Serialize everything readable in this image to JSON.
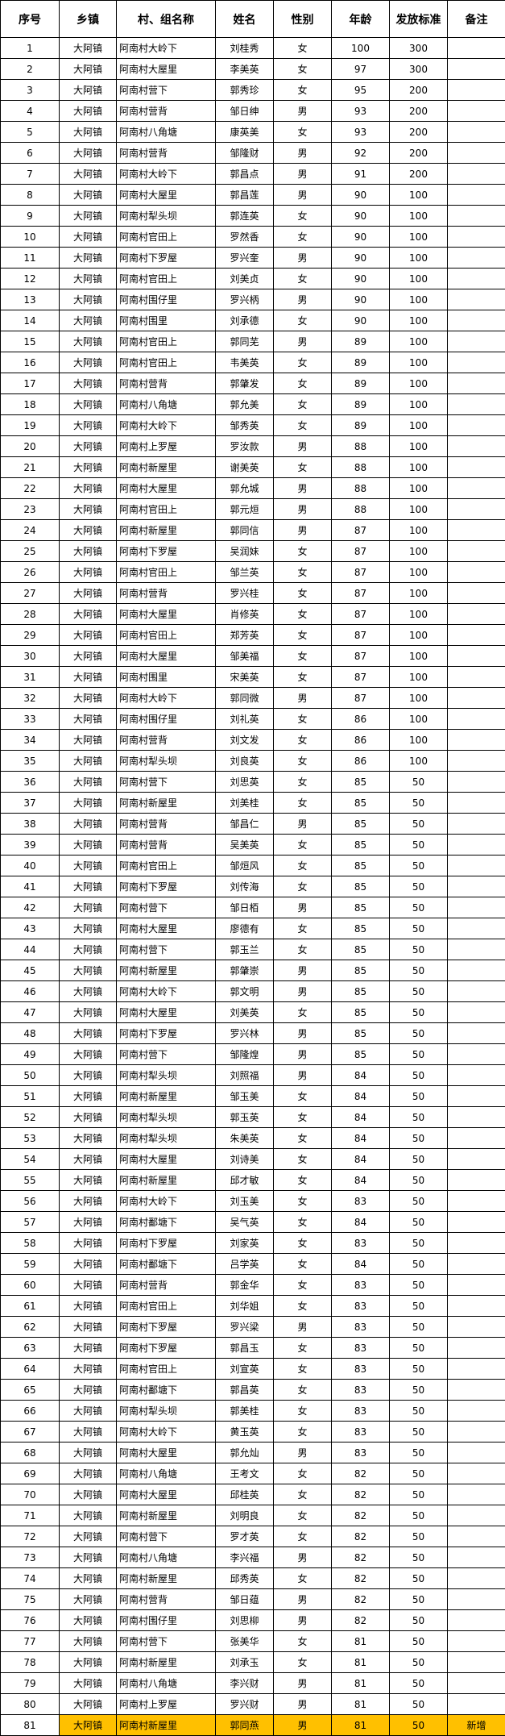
{
  "highlight_color": "#FFC000",
  "headers": [
    "序号",
    "乡镇",
    "村、组名称",
    "姓名",
    "性别",
    "年龄",
    "发放标准",
    "备注"
  ],
  "rows": [
    [
      "1",
      "大阿镇",
      "阿南村大岭下",
      "刘桂秀",
      "女",
      "100",
      "300",
      ""
    ],
    [
      "2",
      "大阿镇",
      "阿南村大屋里",
      "李美英",
      "女",
      "97",
      "300",
      ""
    ],
    [
      "3",
      "大阿镇",
      "阿南村营下",
      "郭秀珍",
      "女",
      "95",
      "200",
      ""
    ],
    [
      "4",
      "大阿镇",
      "阿南村营背",
      "邹日绅",
      "男",
      "93",
      "200",
      ""
    ],
    [
      "5",
      "大阿镇",
      "阿南村八角塘",
      "康英美",
      "女",
      "93",
      "200",
      ""
    ],
    [
      "6",
      "大阿镇",
      "阿南村营背",
      "邹隆财",
      "男",
      "92",
      "200",
      ""
    ],
    [
      "7",
      "大阿镇",
      "阿南村大岭下",
      "郭昌点",
      "男",
      "91",
      "200",
      ""
    ],
    [
      "8",
      "大阿镇",
      "阿南村大屋里",
      "郭昌莲",
      "男",
      "90",
      "100",
      ""
    ],
    [
      "9",
      "大阿镇",
      "阿南村犁头坝",
      "郭连英",
      "女",
      "90",
      "100",
      ""
    ],
    [
      "10",
      "大阿镇",
      "阿南村官田上",
      "罗然香",
      "女",
      "90",
      "100",
      ""
    ],
    [
      "11",
      "大阿镇",
      "阿南村下罗屋",
      "罗兴奎",
      "男",
      "90",
      "100",
      ""
    ],
    [
      "12",
      "大阿镇",
      "阿南村官田上",
      "刘美贞",
      "女",
      "90",
      "100",
      ""
    ],
    [
      "13",
      "大阿镇",
      "阿南村围仔里",
      "罗兴柄",
      "男",
      "90",
      "100",
      ""
    ],
    [
      "14",
      "大阿镇",
      "阿南村围里",
      "刘承德",
      "女",
      "90",
      "100",
      ""
    ],
    [
      "15",
      "大阿镇",
      "阿南村官田上",
      "郭同芜",
      "男",
      "89",
      "100",
      ""
    ],
    [
      "16",
      "大阿镇",
      "阿南村官田上",
      "韦美英",
      "女",
      "89",
      "100",
      ""
    ],
    [
      "17",
      "大阿镇",
      "阿南村营背",
      "郭肇发",
      "女",
      "89",
      "100",
      ""
    ],
    [
      "18",
      "大阿镇",
      "阿南村八角塘",
      "郭允美",
      "女",
      "89",
      "100",
      ""
    ],
    [
      "19",
      "大阿镇",
      "阿南村大岭下",
      "邹秀英",
      "女",
      "89",
      "100",
      ""
    ],
    [
      "20",
      "大阿镇",
      "阿南村上罗屋",
      "罗汝款",
      "男",
      "88",
      "100",
      ""
    ],
    [
      "21",
      "大阿镇",
      "阿南村新屋里",
      "谢美英",
      "女",
      "88",
      "100",
      ""
    ],
    [
      "22",
      "大阿镇",
      "阿南村大屋里",
      "郭允城",
      "男",
      "88",
      "100",
      ""
    ],
    [
      "23",
      "大阿镇",
      "阿南村官田上",
      "郭元烜",
      "男",
      "88",
      "100",
      ""
    ],
    [
      "24",
      "大阿镇",
      "阿南村新屋里",
      "郭同信",
      "男",
      "87",
      "100",
      ""
    ],
    [
      "25",
      "大阿镇",
      "阿南村下罗屋",
      "吴润妹",
      "女",
      "87",
      "100",
      ""
    ],
    [
      "26",
      "大阿镇",
      "阿南村官田上",
      "邹兰英",
      "女",
      "87",
      "100",
      ""
    ],
    [
      "27",
      "大阿镇",
      "阿南村营背",
      "罗兴桂",
      "女",
      "87",
      "100",
      ""
    ],
    [
      "28",
      "大阿镇",
      "阿南村大屋里",
      "肖修英",
      "女",
      "87",
      "100",
      ""
    ],
    [
      "29",
      "大阿镇",
      "阿南村官田上",
      "郑芳英",
      "女",
      "87",
      "100",
      ""
    ],
    [
      "30",
      "大阿镇",
      "阿南村大屋里",
      "邹美福",
      "女",
      "87",
      "100",
      ""
    ],
    [
      "31",
      "大阿镇",
      "阿南村围里",
      "宋美英",
      "女",
      "87",
      "100",
      ""
    ],
    [
      "32",
      "大阿镇",
      "阿南村大岭下",
      "郭同微",
      "男",
      "87",
      "100",
      ""
    ],
    [
      "33",
      "大阿镇",
      "阿南村围仔里",
      "刘礼英",
      "女",
      "86",
      "100",
      ""
    ],
    [
      "34",
      "大阿镇",
      "阿南村营背",
      "刘文发",
      "女",
      "86",
      "100",
      ""
    ],
    [
      "35",
      "大阿镇",
      "阿南村犁头坝",
      "刘良英",
      "女",
      "86",
      "100",
      ""
    ],
    [
      "36",
      "大阿镇",
      "阿南村营下",
      "刘思英",
      "女",
      "85",
      "50",
      ""
    ],
    [
      "37",
      "大阿镇",
      "阿南村新屋里",
      "刘美桂",
      "女",
      "85",
      "50",
      ""
    ],
    [
      "38",
      "大阿镇",
      "阿南村营背",
      "邹昌仁",
      "男",
      "85",
      "50",
      ""
    ],
    [
      "39",
      "大阿镇",
      "阿南村营背",
      "吴美英",
      "女",
      "85",
      "50",
      ""
    ],
    [
      "40",
      "大阿镇",
      "阿南村官田上",
      "邹烜风",
      "女",
      "85",
      "50",
      ""
    ],
    [
      "41",
      "大阿镇",
      "阿南村下罗屋",
      "刘传海",
      "女",
      "85",
      "50",
      ""
    ],
    [
      "42",
      "大阿镇",
      "阿南村营下",
      "邹日栢",
      "男",
      "85",
      "50",
      ""
    ],
    [
      "43",
      "大阿镇",
      "阿南村大屋里",
      "廖德有",
      "女",
      "85",
      "50",
      ""
    ],
    [
      "44",
      "大阿镇",
      "阿南村营下",
      "郭玉兰",
      "女",
      "85",
      "50",
      ""
    ],
    [
      "45",
      "大阿镇",
      "阿南村新屋里",
      "郭肇崇",
      "男",
      "85",
      "50",
      ""
    ],
    [
      "46",
      "大阿镇",
      "阿南村大岭下",
      "郭文明",
      "男",
      "85",
      "50",
      ""
    ],
    [
      "47",
      "大阿镇",
      "阿南村大屋里",
      "刘美英",
      "女",
      "85",
      "50",
      ""
    ],
    [
      "48",
      "大阿镇",
      "阿南村下罗屋",
      "罗兴林",
      "男",
      "85",
      "50",
      ""
    ],
    [
      "49",
      "大阿镇",
      "阿南村营下",
      "邹隆煌",
      "男",
      "85",
      "50",
      ""
    ],
    [
      "50",
      "大阿镇",
      "阿南村犁头坝",
      "刘照福",
      "男",
      "84",
      "50",
      ""
    ],
    [
      "51",
      "大阿镇",
      "阿南村新屋里",
      "邹玉美",
      "女",
      "84",
      "50",
      ""
    ],
    [
      "52",
      "大阿镇",
      "阿南村犁头坝",
      "郭玉英",
      "女",
      "84",
      "50",
      ""
    ],
    [
      "53",
      "大阿镇",
      "阿南村犁头坝",
      "朱美英",
      "女",
      "84",
      "50",
      ""
    ],
    [
      "54",
      "大阿镇",
      "阿南村大屋里",
      "刘诗美",
      "女",
      "84",
      "50",
      ""
    ],
    [
      "55",
      "大阿镇",
      "阿南村新屋里",
      "邱才敏",
      "女",
      "84",
      "50",
      ""
    ],
    [
      "56",
      "大阿镇",
      "阿南村大岭下",
      "刘玉美",
      "女",
      "83",
      "50",
      ""
    ],
    [
      "57",
      "大阿镇",
      "阿南村鄱塘下",
      "吴气英",
      "女",
      "84",
      "50",
      ""
    ],
    [
      "58",
      "大阿镇",
      "阿南村下罗屋",
      "刘家英",
      "女",
      "83",
      "50",
      ""
    ],
    [
      "59",
      "大阿镇",
      "阿南村鄱塘下",
      "吕学英",
      "女",
      "84",
      "50",
      ""
    ],
    [
      "60",
      "大阿镇",
      "阿南村营背",
      "郭金华",
      "女",
      "83",
      "50",
      ""
    ],
    [
      "61",
      "大阿镇",
      "阿南村官田上",
      "刘华姐",
      "女",
      "83",
      "50",
      ""
    ],
    [
      "62",
      "大阿镇",
      "阿南村下罗屋",
      "罗兴梁",
      "男",
      "83",
      "50",
      ""
    ],
    [
      "63",
      "大阿镇",
      "阿南村下罗屋",
      "郭昌玉",
      "女",
      "83",
      "50",
      ""
    ],
    [
      "64",
      "大阿镇",
      "阿南村官田上",
      "刘宣英",
      "女",
      "83",
      "50",
      ""
    ],
    [
      "65",
      "大阿镇",
      "阿南村鄱塘下",
      "郭昌英",
      "女",
      "83",
      "50",
      ""
    ],
    [
      "66",
      "大阿镇",
      "阿南村犁头坝",
      "郭美桂",
      "女",
      "83",
      "50",
      ""
    ],
    [
      "67",
      "大阿镇",
      "阿南村大岭下",
      "黄玉英",
      "女",
      "83",
      "50",
      ""
    ],
    [
      "68",
      "大阿镇",
      "阿南村大屋里",
      "郭允灿",
      "男",
      "83",
      "50",
      ""
    ],
    [
      "69",
      "大阿镇",
      "阿南村八角塘",
      "王考文",
      "女",
      "82",
      "50",
      ""
    ],
    [
      "70",
      "大阿镇",
      "阿南村大屋里",
      "邱桂英",
      "女",
      "82",
      "50",
      ""
    ],
    [
      "71",
      "大阿镇",
      "阿南村新屋里",
      "刘明良",
      "女",
      "82",
      "50",
      ""
    ],
    [
      "72",
      "大阿镇",
      "阿南村营下",
      "罗才英",
      "女",
      "82",
      "50",
      ""
    ],
    [
      "73",
      "大阿镇",
      "阿南村八角塘",
      "李兴福",
      "男",
      "82",
      "50",
      ""
    ],
    [
      "74",
      "大阿镇",
      "阿南村新屋里",
      "邱秀英",
      "女",
      "82",
      "50",
      ""
    ],
    [
      "75",
      "大阿镇",
      "阿南村营背",
      "邹日蕴",
      "男",
      "82",
      "50",
      ""
    ],
    [
      "76",
      "大阿镇",
      "阿南村围仔里",
      "刘思柳",
      "男",
      "82",
      "50",
      ""
    ],
    [
      "77",
      "大阿镇",
      "阿南村营下",
      "张美华",
      "女",
      "81",
      "50",
      ""
    ],
    [
      "78",
      "大阿镇",
      "阿南村新屋里",
      "刘承玉",
      "女",
      "81",
      "50",
      ""
    ],
    [
      "79",
      "大阿镇",
      "阿南村八角塘",
      "李兴财",
      "男",
      "81",
      "50",
      ""
    ],
    [
      "80",
      "大阿镇",
      "阿南村上罗屋",
      "罗兴财",
      "男",
      "81",
      "50",
      ""
    ],
    [
      "81",
      "大阿镇",
      "阿南村新屋里",
      "郭同燕",
      "男",
      "81",
      "50",
      "新增"
    ]
  ],
  "highlighted_rows": [
    "81"
  ]
}
